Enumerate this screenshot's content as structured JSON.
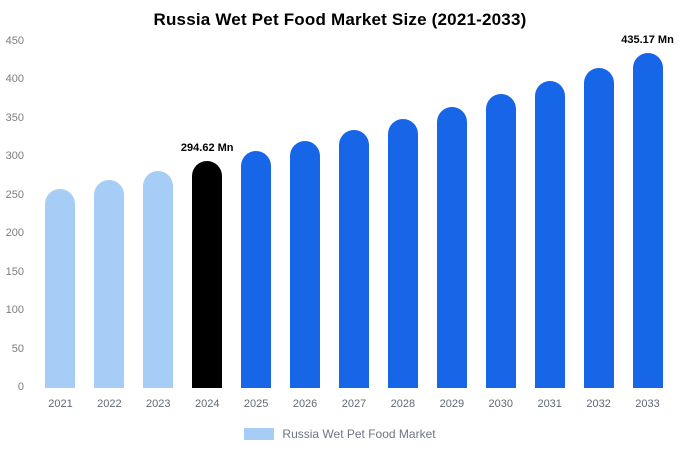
{
  "chart_data": {
    "type": "bar",
    "title": "Russia Wet Pet Food Market Size (2021-2033)",
    "categories": [
      "2021",
      "2022",
      "2023",
      "2024",
      "2025",
      "2026",
      "2027",
      "2028",
      "2029",
      "2030",
      "2031",
      "2032",
      "2033"
    ],
    "values": [
      258.7,
      270.1,
      282.1,
      294.62,
      307.7,
      321.3,
      335.5,
      350.4,
      365.9,
      382.1,
      399.1,
      416.8,
      435.17
    ],
    "unit": "Mn",
    "bar_colors": [
      "#A6CDF6",
      "#A6CDF6",
      "#A6CDF6",
      "#000000",
      "#1766E8",
      "#1766E8",
      "#1766E8",
      "#1766E8",
      "#1766E8",
      "#1766E8",
      "#1766E8",
      "#1766E8",
      "#1766E8"
    ],
    "annotations": [
      {
        "index": 3,
        "text": "294.62 Mn"
      },
      {
        "index": 12,
        "text": "435.17 Mn"
      }
    ],
    "ylim": [
      0,
      450
    ],
    "yticks": [
      0,
      50,
      100,
      150,
      200,
      250,
      300,
      350,
      400,
      450
    ],
    "grid": false,
    "legend_position": "bottom",
    "legend": {
      "label": "Russia Wet Pet Food Market",
      "swatch_color": "#A6CDF6"
    }
  },
  "colors": {
    "background": "#ffffff",
    "light_blue": "#A6CDF6",
    "blue": "#1766E8",
    "highlight_black": "#000000",
    "y_tick_label": "#7d7d7d",
    "x_tick_label": "#5f6a75",
    "legend_text": "#6b7685",
    "title_text": "#000000"
  }
}
